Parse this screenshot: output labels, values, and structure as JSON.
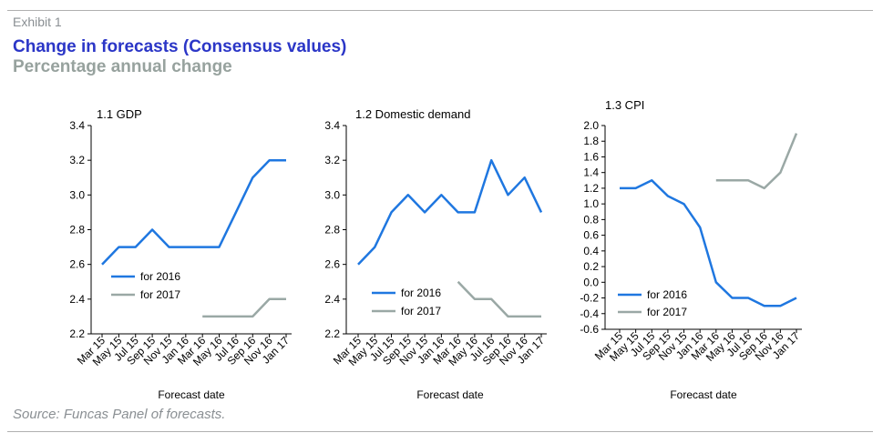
{
  "header": {
    "exhibit": "Exhibit 1",
    "title": "Change in forecasts (Consensus values)",
    "subtitle": "Percentage annual change"
  },
  "footer": {
    "source": "Source: Funcas Panel of forecasts."
  },
  "colors": {
    "series_2016": "#1f77e0",
    "series_2017": "#9aa8a5",
    "title": "#2b36c7",
    "subtitle": "#97a29e"
  },
  "chart_data": [
    {
      "type": "line",
      "title": "1.1 GDP",
      "xlabel": "Forecast date",
      "ylabel": "",
      "x_ticks": [
        "Mar 15",
        "May 15",
        "Jul 15",
        "Sep 15",
        "Nov 15",
        "Jan 16",
        "Mar 16",
        "May 16",
        "Jul 16",
        "Sep 16",
        "Nov 16",
        "Jan 17"
      ],
      "ylim": [
        2.2,
        3.4
      ],
      "y_ticks": [
        "2.2",
        "2.4",
        "2.6",
        "2.8",
        "3.0",
        "3.2",
        "3.4"
      ],
      "legend_position": "bottom-left",
      "series": [
        {
          "name": "for 2016",
          "color": "#1f77e0",
          "values": [
            2.6,
            2.7,
            2.7,
            2.8,
            2.7,
            2.7,
            2.7,
            2.7,
            2.9,
            3.1,
            3.2,
            3.2
          ]
        },
        {
          "name": "for 2017",
          "color": "#9aa8a5",
          "values": [
            null,
            null,
            null,
            null,
            null,
            null,
            2.3,
            2.3,
            2.3,
            2.3,
            2.4,
            2.4
          ]
        }
      ]
    },
    {
      "type": "line",
      "title": "1.2 Domestic demand",
      "xlabel": "Forecast date",
      "ylabel": "",
      "x_ticks": [
        "Mar 15",
        "May 15",
        "Jul 15",
        "Sep 15",
        "Nov 15",
        "Jan 16",
        "Mar 16",
        "May 16",
        "Jul 16",
        "Sep 16",
        "Nov 16",
        "Jan 17"
      ],
      "ylim": [
        2.2,
        3.4
      ],
      "y_ticks": [
        "2.2",
        "2.4",
        "2.6",
        "2.8",
        "3.0",
        "3.2",
        "3.4"
      ],
      "legend_position": "bottom-left",
      "series": [
        {
          "name": "for 2016",
          "color": "#1f77e0",
          "values": [
            2.6,
            2.7,
            2.9,
            3.0,
            2.9,
            3.0,
            2.9,
            2.9,
            3.2,
            3.0,
            3.1,
            2.9
          ]
        },
        {
          "name": "for 2017",
          "color": "#9aa8a5",
          "values": [
            null,
            null,
            null,
            null,
            null,
            null,
            2.5,
            2.4,
            2.4,
            2.3,
            2.3,
            2.3
          ]
        }
      ]
    },
    {
      "type": "line",
      "title": "1.3 CPI",
      "xlabel": "Forecast date",
      "ylabel": "",
      "x_ticks": [
        "Mar 15",
        "May 15",
        "Jul 15",
        "Sep 15",
        "Nov 15",
        "Jan 16",
        "Mar 16",
        "May 16",
        "Jul 16",
        "Sep 16",
        "Nov 16",
        "Jan 17"
      ],
      "ylim": [
        -0.6,
        2.0
      ],
      "y_ticks": [
        "-0.6",
        "-0.4",
        "-0.2",
        "0.0",
        "0.2",
        "0.4",
        "0.6",
        "0.8",
        "1.0",
        "1.2",
        "1.4",
        "1.6",
        "1.8",
        "2.0"
      ],
      "legend_position": "bottom-left",
      "series": [
        {
          "name": "for 2016",
          "color": "#1f77e0",
          "values": [
            1.2,
            1.2,
            1.3,
            1.1,
            1.0,
            0.7,
            0.0,
            -0.2,
            -0.2,
            -0.3,
            -0.3,
            -0.2
          ]
        },
        {
          "name": "for 2017",
          "color": "#9aa8a5",
          "values": [
            null,
            null,
            null,
            null,
            null,
            null,
            1.3,
            1.3,
            1.3,
            1.2,
            1.4,
            1.9
          ]
        }
      ]
    }
  ]
}
